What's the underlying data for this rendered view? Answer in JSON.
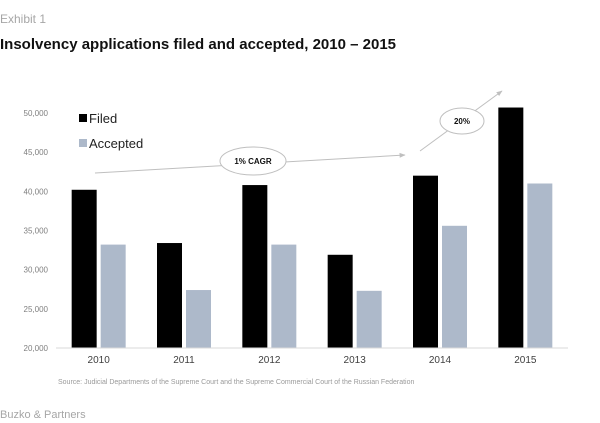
{
  "header": {
    "exhibit": "Exhibit 1",
    "title": "Insolvency applications filed and accepted, 2010 – 2015"
  },
  "footer": {
    "source": "Source: Judicial Departments of the Supreme Court and the Supreme Commercial Court of the Russian Federation",
    "brand": "Buzko & Partners"
  },
  "colors": {
    "filed": "#000000",
    "accepted": "#adb9ca",
    "axis_text": "#7f7f7f",
    "annotation": "#bfbfbf"
  },
  "chart_data": {
    "type": "bar",
    "title": "Insolvency applications filed and accepted, 2010 – 2015",
    "categories": [
      "2010",
      "2011",
      "2012",
      "2013",
      "2014",
      "2015"
    ],
    "series": [
      {
        "name": "Filed",
        "values": [
          40200,
          33400,
          40800,
          31900,
          42000,
          50700
        ]
      },
      {
        "name": "Accepted",
        "values": [
          33200,
          27400,
          33200,
          27300,
          35600,
          41000
        ]
      }
    ],
    "ylim": [
      20000,
      50000
    ],
    "yticks": [
      20000,
      25000,
      30000,
      35000,
      40000,
      45000,
      50000
    ],
    "ytick_labels": [
      "20,000",
      "25,000",
      "30,000",
      "35,000",
      "40,000",
      "45,000",
      "50,000"
    ],
    "legend_position": "top-left",
    "annotations": [
      "1% CAGR",
      "20%"
    ],
    "xlabel": "",
    "ylabel": ""
  }
}
